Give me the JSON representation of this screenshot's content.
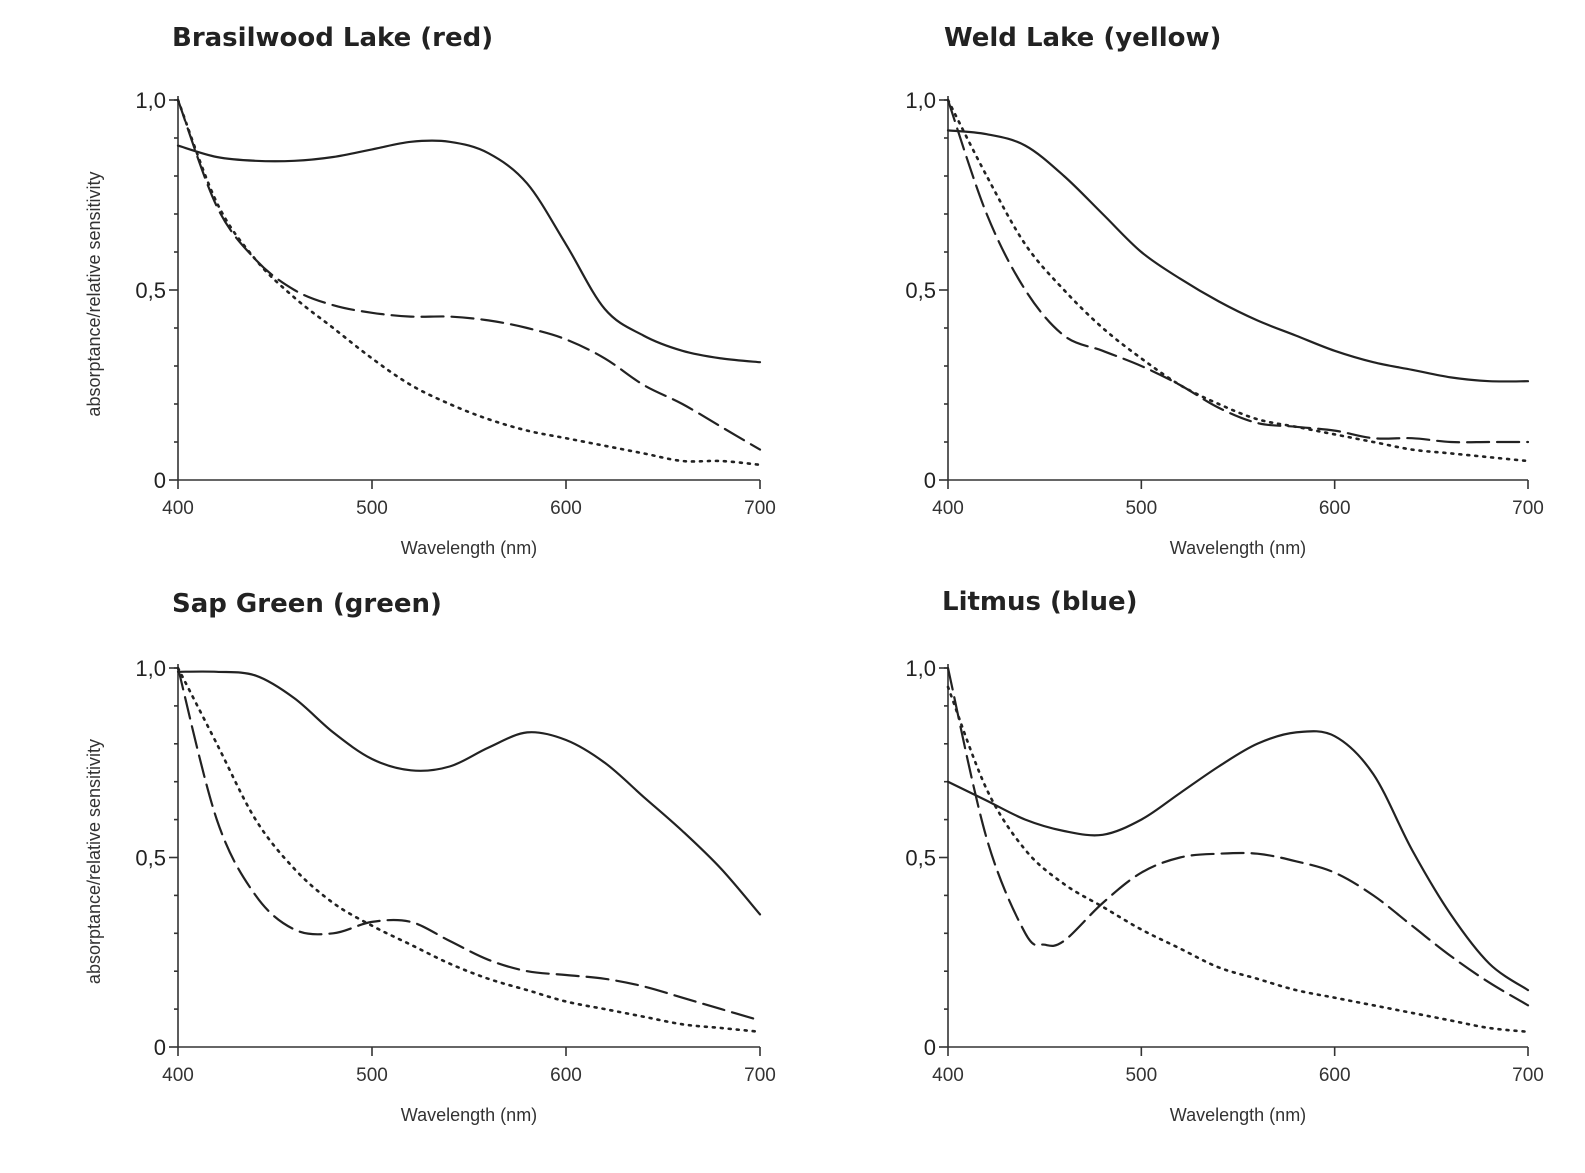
{
  "chart_data": [
    {
      "type": "line",
      "title": "Brasilwood Lake (red)",
      "xlabel": "Wavelength (nm)",
      "ylabel": "absorptance/relative sensitivity",
      "xlim": [
        400,
        700
      ],
      "ylim": [
        0,
        1
      ],
      "xticks": [
        "400",
        "500",
        "600",
        "700"
      ],
      "yticks": [
        {
          "value": 0,
          "label": "0"
        },
        {
          "value": 0.5,
          "label": "0,5"
        },
        {
          "value": 1,
          "label": "1,0"
        }
      ],
      "series": [
        {
          "style": "solid",
          "x": [
            400,
            420,
            440,
            460,
            480,
            500,
            520,
            540,
            560,
            580,
            600,
            620,
            640,
            660,
            680,
            700
          ],
          "y": [
            0.88,
            0.85,
            0.84,
            0.84,
            0.85,
            0.87,
            0.89,
            0.89,
            0.86,
            0.78,
            0.62,
            0.45,
            0.38,
            0.34,
            0.32,
            0.31
          ]
        },
        {
          "style": "dashed",
          "x": [
            400,
            420,
            440,
            460,
            480,
            500,
            520,
            540,
            560,
            580,
            600,
            620,
            640,
            660,
            680,
            700
          ],
          "y": [
            1.0,
            0.72,
            0.58,
            0.5,
            0.46,
            0.44,
            0.43,
            0.43,
            0.42,
            0.4,
            0.37,
            0.32,
            0.25,
            0.2,
            0.14,
            0.08
          ]
        },
        {
          "style": "dotted",
          "x": [
            400,
            420,
            440,
            460,
            480,
            500,
            520,
            540,
            560,
            580,
            600,
            620,
            640,
            660,
            680,
            700
          ],
          "y": [
            1.0,
            0.73,
            0.58,
            0.48,
            0.4,
            0.32,
            0.25,
            0.2,
            0.16,
            0.13,
            0.11,
            0.09,
            0.07,
            0.05,
            0.05,
            0.04
          ]
        }
      ]
    },
    {
      "type": "line",
      "title": "Weld Lake (yellow)",
      "xlabel": "Wavelength (nm)",
      "ylabel": "",
      "xlim": [
        400,
        700
      ],
      "ylim": [
        0,
        1
      ],
      "xticks": [
        "400",
        "500",
        "600",
        "700"
      ],
      "yticks": [
        {
          "value": 0,
          "label": "0"
        },
        {
          "value": 0.5,
          "label": "0,5"
        },
        {
          "value": 1,
          "label": "1,0"
        }
      ],
      "series": [
        {
          "style": "solid",
          "x": [
            400,
            420,
            440,
            460,
            480,
            500,
            520,
            540,
            560,
            580,
            600,
            620,
            640,
            660,
            680,
            700
          ],
          "y": [
            0.92,
            0.91,
            0.88,
            0.8,
            0.7,
            0.6,
            0.53,
            0.47,
            0.42,
            0.38,
            0.34,
            0.31,
            0.29,
            0.27,
            0.26,
            0.26
          ]
        },
        {
          "style": "dashed",
          "x": [
            400,
            420,
            440,
            460,
            480,
            500,
            520,
            540,
            560,
            580,
            600,
            620,
            640,
            660,
            680,
            700
          ],
          "y": [
            1.0,
            0.7,
            0.5,
            0.38,
            0.34,
            0.3,
            0.25,
            0.19,
            0.15,
            0.14,
            0.13,
            0.11,
            0.11,
            0.1,
            0.1,
            0.1
          ]
        },
        {
          "style": "dotted",
          "x": [
            400,
            420,
            440,
            460,
            480,
            500,
            520,
            540,
            560,
            580,
            600,
            620,
            640,
            660,
            680,
            700
          ],
          "y": [
            1.0,
            0.8,
            0.62,
            0.5,
            0.4,
            0.32,
            0.25,
            0.2,
            0.16,
            0.14,
            0.12,
            0.1,
            0.08,
            0.07,
            0.06,
            0.05
          ]
        }
      ]
    },
    {
      "type": "line",
      "title": "Sap Green (green)",
      "xlabel": "Wavelength (nm)",
      "ylabel": "absorptance/relative sensitivity",
      "xlim": [
        400,
        700
      ],
      "ylim": [
        0,
        1
      ],
      "xticks": [
        "400",
        "500",
        "600",
        "700"
      ],
      "yticks": [
        {
          "value": 0,
          "label": "0"
        },
        {
          "value": 0.5,
          "label": "0,5"
        },
        {
          "value": 1,
          "label": "1,0"
        }
      ],
      "series": [
        {
          "style": "solid",
          "x": [
            400,
            420,
            440,
            460,
            480,
            500,
            520,
            540,
            560,
            580,
            600,
            620,
            640,
            660,
            680,
            700
          ],
          "y": [
            0.99,
            0.99,
            0.98,
            0.92,
            0.83,
            0.76,
            0.73,
            0.74,
            0.79,
            0.83,
            0.81,
            0.75,
            0.66,
            0.57,
            0.47,
            0.35
          ]
        },
        {
          "style": "dashed",
          "x": [
            400,
            420,
            440,
            460,
            480,
            500,
            520,
            540,
            560,
            580,
            600,
            620,
            640,
            660,
            680,
            700
          ],
          "y": [
            1.0,
            0.6,
            0.4,
            0.31,
            0.3,
            0.33,
            0.33,
            0.28,
            0.23,
            0.2,
            0.19,
            0.18,
            0.16,
            0.13,
            0.1,
            0.07
          ]
        },
        {
          "style": "dotted",
          "x": [
            400,
            420,
            440,
            460,
            480,
            500,
            520,
            540,
            560,
            580,
            600,
            620,
            640,
            660,
            680,
            700
          ],
          "y": [
            1.0,
            0.8,
            0.6,
            0.47,
            0.38,
            0.32,
            0.27,
            0.22,
            0.18,
            0.15,
            0.12,
            0.1,
            0.08,
            0.06,
            0.05,
            0.04
          ]
        }
      ]
    },
    {
      "type": "line",
      "title": "Litmus (blue)",
      "xlabel": "Wavelength (nm)",
      "ylabel": "",
      "xlim": [
        400,
        700
      ],
      "ylim": [
        0,
        1
      ],
      "xticks": [
        "400",
        "500",
        "600",
        "700"
      ],
      "yticks": [
        {
          "value": 0,
          "label": "0"
        },
        {
          "value": 0.5,
          "label": "0,5"
        },
        {
          "value": 1,
          "label": "1,0"
        }
      ],
      "series": [
        {
          "style": "solid",
          "x": [
            400,
            420,
            440,
            460,
            480,
            500,
            520,
            540,
            560,
            580,
            600,
            620,
            640,
            660,
            680,
            700
          ],
          "y": [
            0.7,
            0.65,
            0.6,
            0.57,
            0.56,
            0.6,
            0.67,
            0.74,
            0.8,
            0.83,
            0.82,
            0.72,
            0.52,
            0.35,
            0.22,
            0.15
          ]
        },
        {
          "style": "dashed",
          "x": [
            400,
            420,
            440,
            450,
            460,
            480,
            500,
            520,
            540,
            560,
            580,
            600,
            620,
            640,
            660,
            680,
            700
          ],
          "y": [
            1.0,
            0.55,
            0.3,
            0.27,
            0.28,
            0.38,
            0.46,
            0.5,
            0.51,
            0.51,
            0.49,
            0.46,
            0.4,
            0.32,
            0.24,
            0.17,
            0.11
          ]
        },
        {
          "style": "dotted",
          "x": [
            400,
            420,
            440,
            460,
            480,
            500,
            520,
            540,
            560,
            580,
            600,
            620,
            640,
            660,
            680,
            700
          ],
          "y": [
            0.95,
            0.68,
            0.52,
            0.43,
            0.37,
            0.31,
            0.26,
            0.21,
            0.18,
            0.15,
            0.13,
            0.11,
            0.09,
            0.07,
            0.05,
            0.04
          ]
        }
      ]
    }
  ]
}
